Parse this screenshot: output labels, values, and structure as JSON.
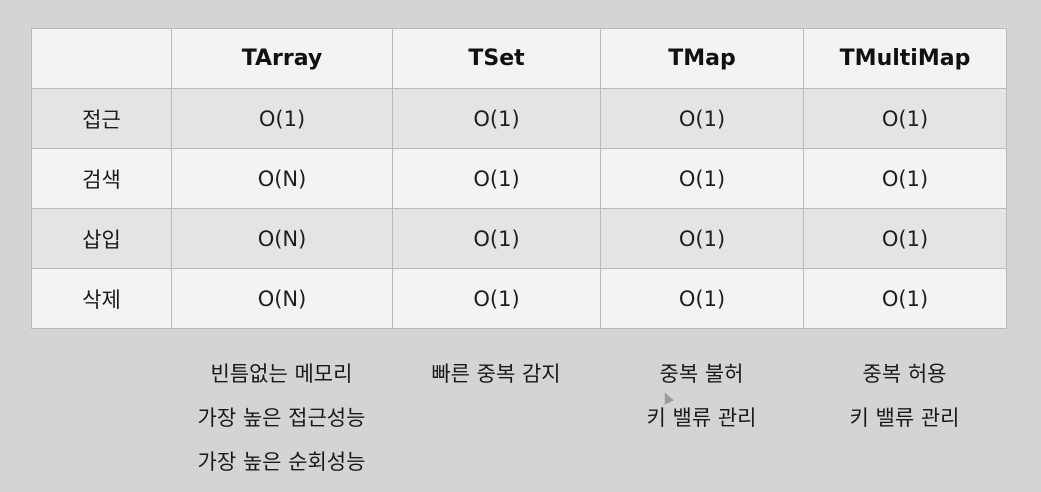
{
  "table": {
    "corner": "",
    "columns": [
      "TArray",
      "TSet",
      "TMap",
      "TMultiMap"
    ],
    "rows": [
      {
        "label": "접근",
        "cells": [
          "O(1)",
          "O(1)",
          "O(1)",
          "O(1)"
        ]
      },
      {
        "label": "검색",
        "cells": [
          "O(N)",
          "O(1)",
          "O(1)",
          "O(1)"
        ]
      },
      {
        "label": "삽입",
        "cells": [
          "O(N)",
          "O(1)",
          "O(1)",
          "O(1)"
        ]
      },
      {
        "label": "삭제",
        "cells": [
          "O(N)",
          "O(1)",
          "O(1)",
          "O(1)"
        ]
      }
    ]
  },
  "notes": {
    "tarray": [
      "빈틈없는 메모리",
      "가장 높은 접근성능",
      "가장 높은 순회성능"
    ],
    "tset": [
      "빠른 중복 감지"
    ],
    "tmap": [
      "중복 불허",
      "키 밸류 관리"
    ],
    "tmultimap": [
      "중복 허용",
      "키 밸류 관리"
    ]
  }
}
